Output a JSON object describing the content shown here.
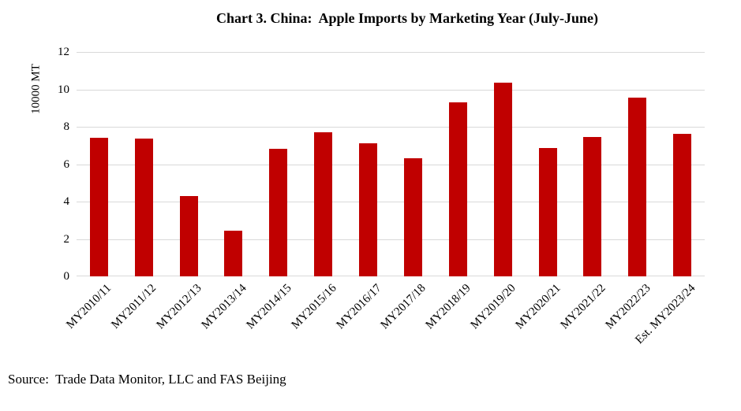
{
  "title": "Chart 3. China:  Apple Imports by Marketing Year (July-June)",
  "source": "Source:  Trade Data Monitor, LLC and FAS Beijing",
  "chart_data": {
    "type": "bar",
    "title": "Chart 3. China:  Apple Imports by Marketing Year (July-June)",
    "xlabel": "",
    "ylabel": "10000 MT",
    "ylim": [
      0,
      12
    ],
    "yticks": [
      0,
      2,
      4,
      6,
      8,
      10,
      12
    ],
    "grid": true,
    "legend_position": "none",
    "bar_color": "#C00000",
    "gridline_color": "#D9D9D9",
    "categories": [
      "MY2010/11",
      "MY2011/12",
      "MY2012/13",
      "MY2013/14",
      "MY2014/15",
      "MY2015/16",
      "MY2016/17",
      "MY2017/18",
      "MY2018/19",
      "MY2019/20",
      "MY2020/21",
      "MY2021/22",
      "MY2022/23",
      "Est. MY2023/24"
    ],
    "values": [
      7.4,
      7.35,
      4.3,
      2.45,
      6.8,
      7.7,
      7.1,
      6.3,
      9.3,
      10.35,
      6.85,
      7.45,
      9.55,
      7.6
    ]
  }
}
